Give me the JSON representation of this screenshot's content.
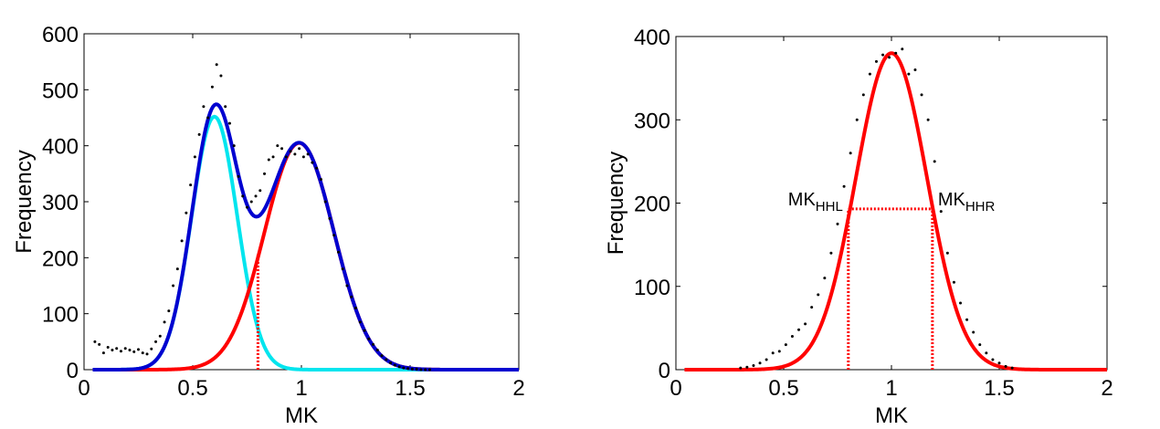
{
  "chart_data": [
    {
      "type": "line",
      "title": "",
      "xlabel": "MK",
      "ylabel": "Frequency",
      "xlim": [
        0,
        2
      ],
      "ylim": [
        0,
        600
      ],
      "xticks": [
        0,
        0.5,
        1,
        1.5,
        2
      ],
      "xtick_labels": [
        "0",
        "0.5",
        "1",
        "1.5",
        "2"
      ],
      "yticks": [
        0,
        100,
        200,
        300,
        400,
        500,
        600
      ],
      "ytick_labels": [
        "0",
        "100",
        "200",
        "300",
        "400",
        "500",
        "600"
      ],
      "grid": false,
      "legend": "none",
      "series": [
        {
          "kind": "gaussian",
          "color": "#00e5ee",
          "amplitude": 452,
          "mean": 0.6,
          "sd": 0.105
        },
        {
          "kind": "gaussian",
          "color": "#ff0000",
          "amplitude": 405,
          "mean": 0.99,
          "sd": 0.16
        },
        {
          "kind": "sum",
          "color": "#0000d0",
          "of": [
            0,
            1
          ]
        }
      ],
      "vlines": [
        {
          "x": 0.8,
          "y0": 0,
          "y1": 205,
          "color": "#ff0000",
          "style": "dotted"
        }
      ],
      "scatter": {
        "color": "#000000",
        "x": [
          0.05,
          0.07,
          0.09,
          0.11,
          0.13,
          0.15,
          0.17,
          0.19,
          0.21,
          0.23,
          0.25,
          0.27,
          0.29,
          0.31,
          0.33,
          0.35,
          0.37,
          0.39,
          0.41,
          0.43,
          0.45,
          0.47,
          0.49,
          0.51,
          0.53,
          0.55,
          0.57,
          0.59,
          0.61,
          0.63,
          0.65,
          0.67,
          0.69,
          0.71,
          0.73,
          0.75,
          0.77,
          0.79,
          0.81,
          0.83,
          0.85,
          0.87,
          0.89,
          0.91,
          0.93,
          0.95,
          0.97,
          0.99,
          1.01,
          1.03,
          1.05,
          1.07,
          1.09,
          1.11,
          1.13,
          1.15,
          1.17,
          1.19,
          1.21,
          1.23,
          1.25,
          1.27,
          1.29,
          1.31,
          1.33,
          1.35,
          1.37,
          1.39,
          1.41,
          1.43,
          1.45,
          1.47,
          1.49,
          1.51,
          1.53,
          1.55,
          1.57,
          1.59
        ],
        "y": [
          50,
          45,
          30,
          40,
          35,
          38,
          33,
          38,
          35,
          32,
          36,
          30,
          28,
          37,
          50,
          60,
          85,
          105,
          150,
          180,
          230,
          280,
          330,
          380,
          420,
          470,
          450,
          505,
          545,
          525,
          470,
          440,
          400,
          345,
          310,
          290,
          300,
          310,
          320,
          350,
          375,
          380,
          400,
          395,
          380,
          390,
          385,
          395,
          380,
          385,
          370,
          360,
          340,
          300,
          270,
          240,
          210,
          180,
          150,
          130,
          110,
          85,
          70,
          55,
          45,
          35,
          25,
          18,
          12,
          8,
          5,
          3,
          2,
          1,
          1,
          0,
          0,
          0
        ]
      }
    },
    {
      "type": "line",
      "title": "",
      "xlabel": "MK",
      "ylabel": "Frequency",
      "xlim": [
        0,
        2
      ],
      "ylim": [
        0,
        400
      ],
      "xticks": [
        0,
        0.5,
        1,
        1.5,
        2
      ],
      "xtick_labels": [
        "0",
        "0.5",
        "1",
        "1.5",
        "2"
      ],
      "yticks": [
        0,
        100,
        200,
        300,
        400
      ],
      "ytick_labels": [
        "0",
        "100",
        "200",
        "300",
        "400"
      ],
      "grid": false,
      "legend": "none",
      "series": [
        {
          "kind": "gaussian",
          "color": "#ff0000",
          "amplitude": 380,
          "mean": 1.0,
          "sd": 0.165
        }
      ],
      "vlines": [
        {
          "x": 0.8,
          "y0": 0,
          "y1": 193,
          "color": "#ff0000",
          "style": "dotted"
        },
        {
          "x": 1.19,
          "y0": 0,
          "y1": 193,
          "color": "#ff0000",
          "style": "dotted"
        }
      ],
      "hlines": [
        {
          "y": 193,
          "x0": 0.8,
          "x1": 1.19,
          "color": "#ff0000",
          "style": "dotted"
        }
      ],
      "annotations": [
        {
          "main": "MK",
          "sub": "HHL",
          "x": 0.8,
          "y": 193,
          "side": "left"
        },
        {
          "main": "MK",
          "sub": "HHR",
          "x": 1.19,
          "y": 193,
          "side": "right"
        }
      ],
      "scatter": {
        "color": "#000000",
        "x": [
          0.3,
          0.33,
          0.36,
          0.39,
          0.42,
          0.45,
          0.48,
          0.51,
          0.54,
          0.57,
          0.6,
          0.63,
          0.66,
          0.69,
          0.72,
          0.75,
          0.78,
          0.81,
          0.84,
          0.87,
          0.9,
          0.93,
          0.96,
          0.99,
          1.02,
          1.05,
          1.08,
          1.11,
          1.14,
          1.17,
          1.2,
          1.23,
          1.26,
          1.29,
          1.32,
          1.35,
          1.38,
          1.41,
          1.44,
          1.47,
          1.5,
          1.53,
          1.56
        ],
        "y": [
          2,
          3,
          5,
          8,
          12,
          20,
          22,
          30,
          40,
          48,
          55,
          75,
          90,
          110,
          140,
          175,
          220,
          260,
          300,
          330,
          355,
          370,
          378,
          375,
          380,
          385,
          355,
          360,
          330,
          300,
          250,
          190,
          140,
          105,
          80,
          60,
          45,
          30,
          20,
          12,
          8,
          4,
          2
        ]
      }
    }
  ]
}
